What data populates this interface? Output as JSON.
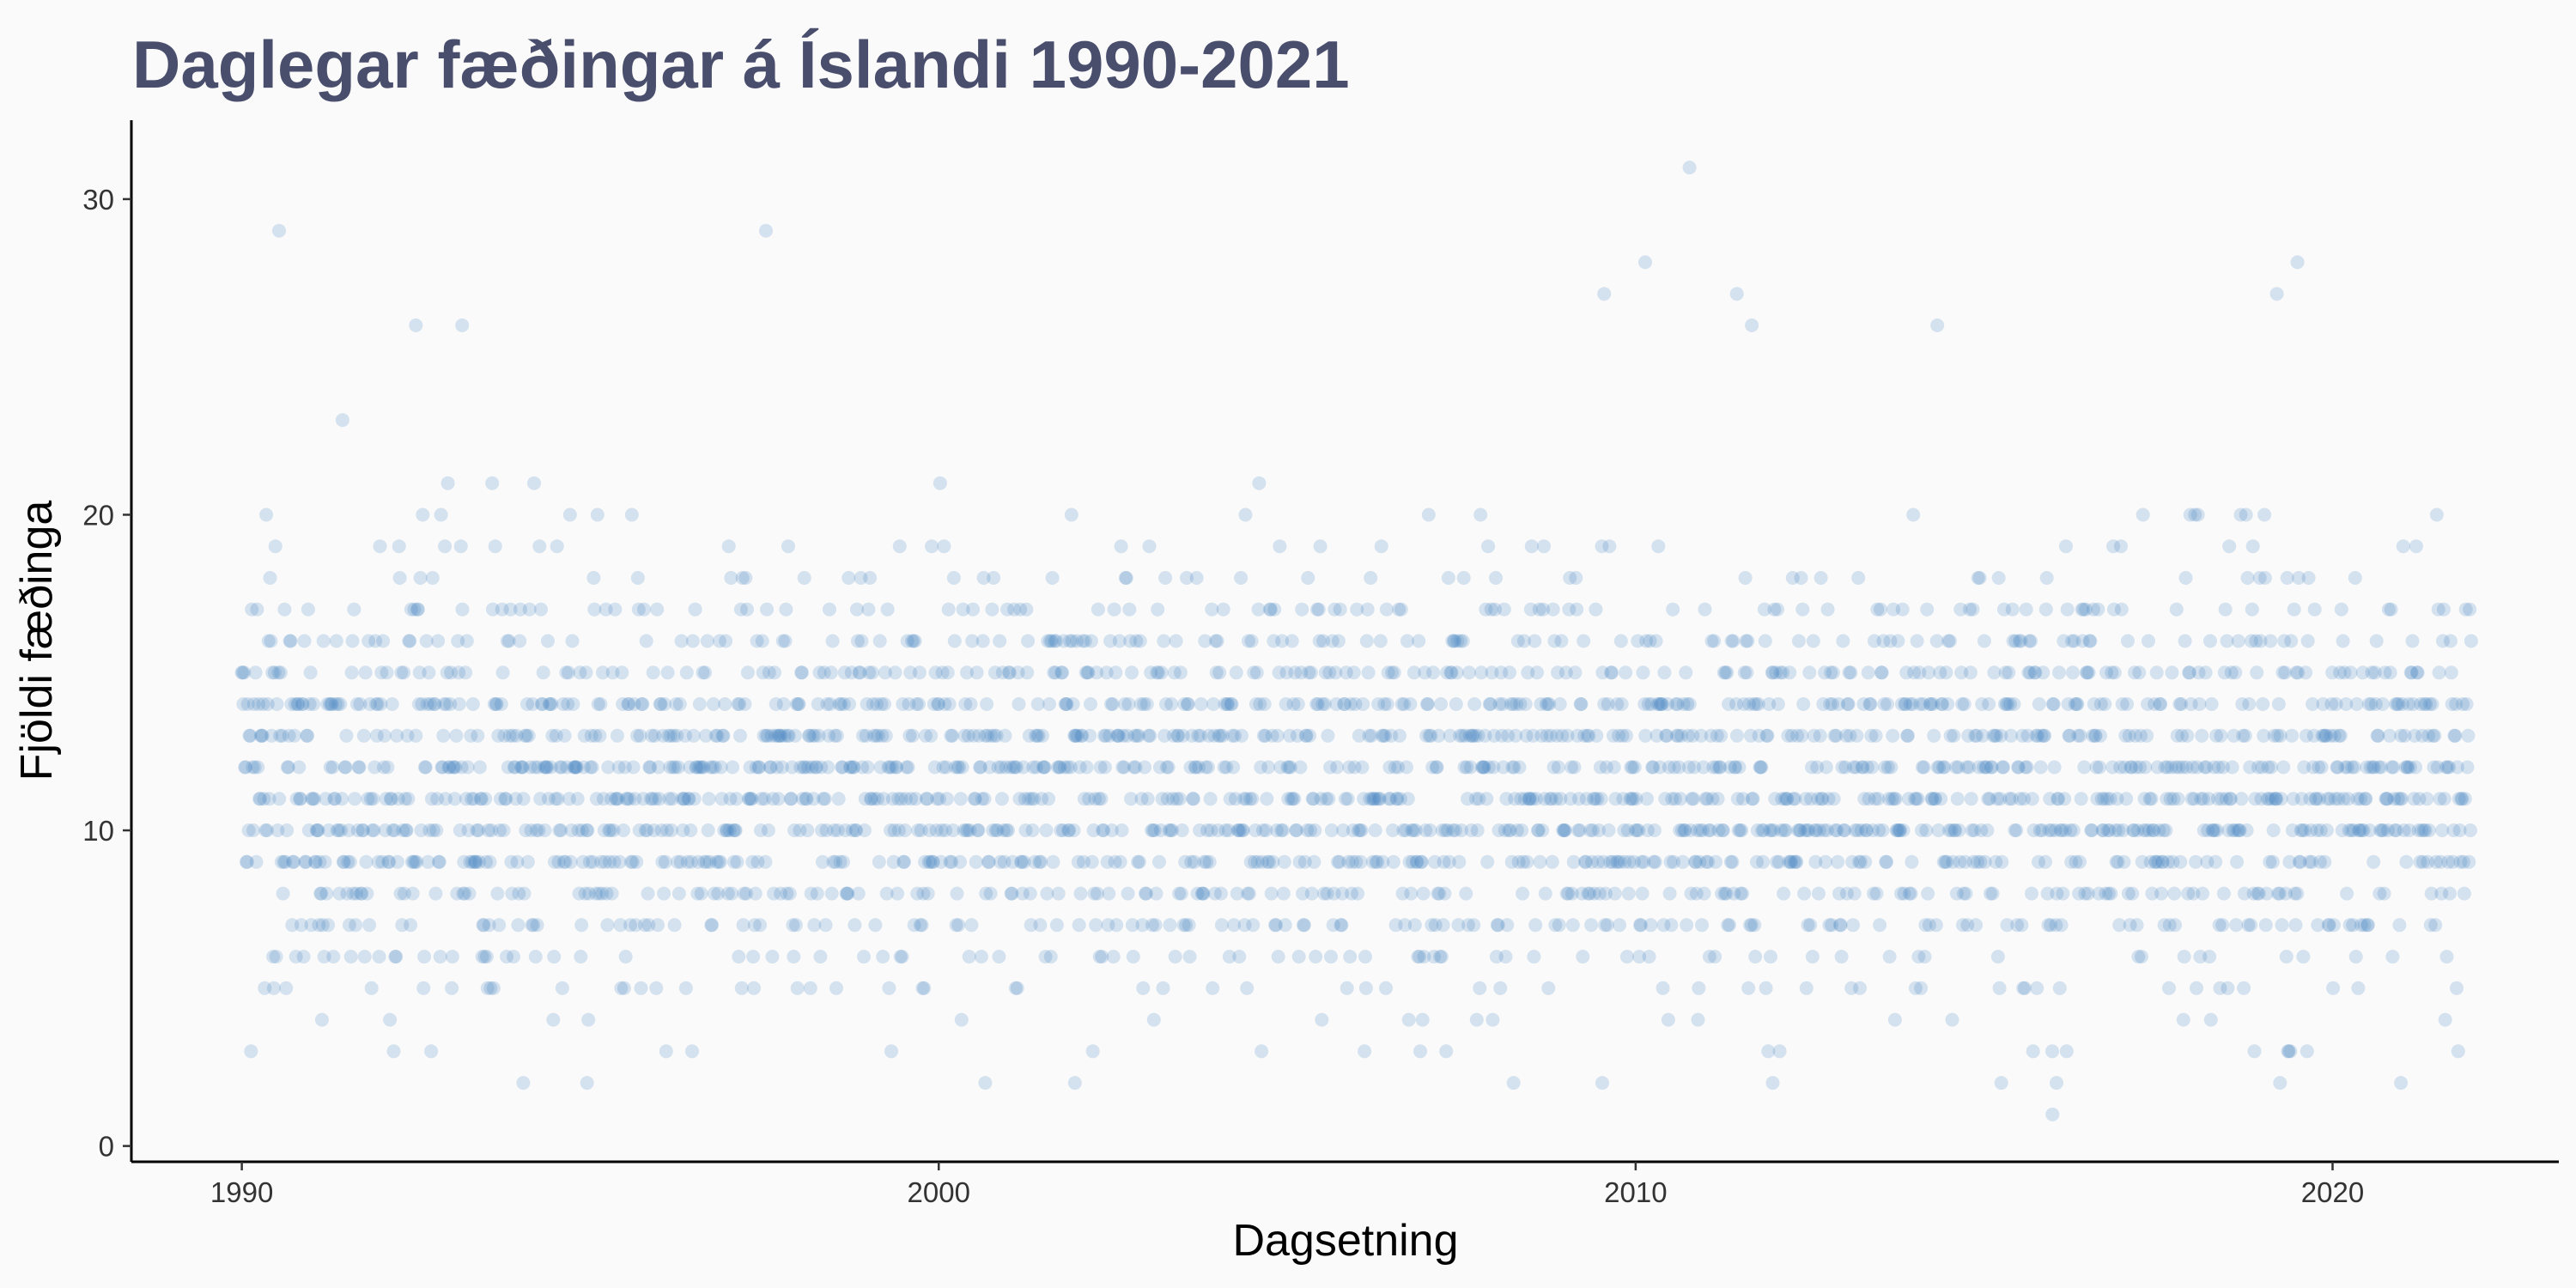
{
  "chart_data": {
    "type": "scatter",
    "title": "Daglegar fæðingar á Íslandi 1990-2021",
    "xlabel": "Dagsetning",
    "ylabel": "Fjöldi fæðinga",
    "xlim": [
      "1988-06-01",
      "2023-04-01"
    ],
    "ylim": [
      -0.5,
      32.5
    ],
    "x_ticks": [
      "1990-01-01",
      "2000-01-01",
      "2010-01-01",
      "2020-01-01"
    ],
    "x_tick_labels": [
      "1990",
      "2000",
      "2010",
      "2020"
    ],
    "y_ticks": [
      0,
      10,
      20,
      30
    ],
    "y_tick_labels": [
      "0",
      "10",
      "20",
      "30"
    ],
    "date_range": [
      "1990-01-01",
      "2021-12-31"
    ],
    "point_color": "#3a7ebf",
    "point_opacity": 0.2,
    "grid": false,
    "legend": "none",
    "approx_daily_mean": 12,
    "approx_typical_range": [
      5,
      18
    ],
    "notable_points": [
      {
        "x": "1990-07-15",
        "y": 29
      },
      {
        "x": "1997-07-10",
        "y": 29
      },
      {
        "x": "2010-10-10",
        "y": 31
      },
      {
        "x": "2010-02-20",
        "y": 28
      },
      {
        "x": "2019-07-01",
        "y": 28
      },
      {
        "x": "2009-07-20",
        "y": 27
      },
      {
        "x": "2011-06-15",
        "y": 27
      },
      {
        "x": "2019-03-15",
        "y": 27
      },
      {
        "x": "1992-07-01",
        "y": 26
      },
      {
        "x": "1993-03-01",
        "y": 26
      },
      {
        "x": "2011-09-01",
        "y": 26
      },
      {
        "x": "2014-05-01",
        "y": 26
      },
      {
        "x": "2015-12-25",
        "y": 1
      },
      {
        "x": "1994-01-15",
        "y": 2
      },
      {
        "x": "1994-12-15",
        "y": 2
      },
      {
        "x": "2000-09-01",
        "y": 2
      },
      {
        "x": "2001-12-15",
        "y": 2
      },
      {
        "x": "2008-04-01",
        "y": 2
      },
      {
        "x": "2009-07-10",
        "y": 2
      },
      {
        "x": "2011-12-20",
        "y": 2
      },
      {
        "x": "2015-04-01",
        "y": 2
      },
      {
        "x": "2016-01-15",
        "y": 2
      },
      {
        "x": "2019-04-01",
        "y": 2
      },
      {
        "x": "2020-12-25",
        "y": 2
      }
    ]
  }
}
